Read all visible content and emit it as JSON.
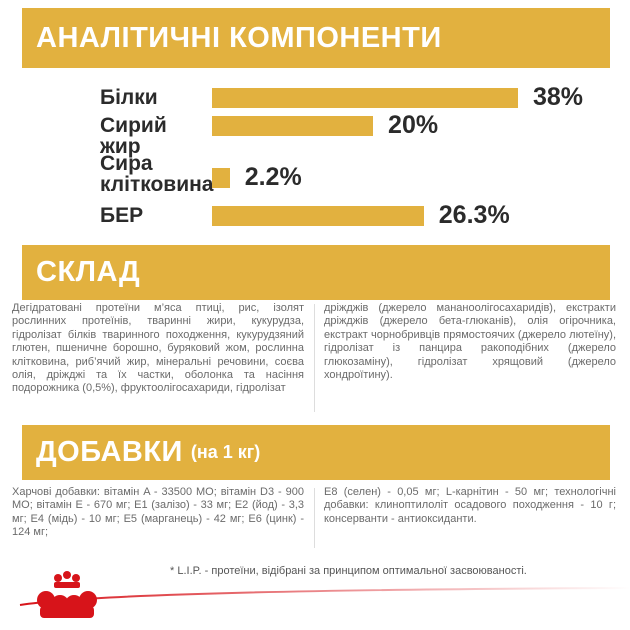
{
  "chart_data": {
    "type": "bar",
    "orientation": "horizontal",
    "title": "АНАЛІТИЧНІ КОМПОНЕНТИ",
    "categories": [
      "Білки",
      "Сирий жир",
      "Сира клітковина",
      "БЕР"
    ],
    "values": [
      38,
      20,
      2.2,
      26.3
    ],
    "value_labels": [
      "38%",
      "20%",
      "2.2%",
      "26.3%"
    ],
    "color": "#e2b13f"
  },
  "composition": {
    "title": "СКЛАД",
    "columns": [
      "Дегідратовані протеїни м’яса птиці, рис, ізолят рослинних протеїнів, тваринні жири, кукурудза, гідролізат білків тваринного походження, кукурудзяний глютен, пшеничне борошно, буряковий жом, рослинна клітковина, риб’ячий жир, мінеральні речовини, соєва олія, дріжджі та їх частки, оболонка та насіння подорожника (0,5%), фруктоолігосахариди, гідролізат",
      "дріжджів (джерело мананоолігосахаридів), екстракти дріжджів (джерело бета-глюканів), олія огірочника, екстракт чорнобривців прямостоячих (джерело лютеїну), гідролізат із панцира ракоподібних (джерело глюкозаміну), гідролізат хрящовий (джерело хондроїтину)."
    ]
  },
  "additives": {
    "title": "ДОБАВКИ",
    "subtitle": "(на 1 кг)",
    "columns": [
      "Харчові добавки: вітамін A - 33500 МО; вітамін D3 - 900 МО; вітамін E - 670 мг; E1 (залізо) - 33 мг; E2 (йод) - 3,3 мг; E4 (мідь) - 10 мг; E5 (марганець) - 42 мг; E6 (цинк) - 124 мг;",
      "E8 (селен) - 0,05 мг; L-карнітин - 50 мг; технологічні добавки: клиноптилоліт осадового походження - 10 г; консерванти - антиоксиданти."
    ]
  },
  "footnote": "* L.I.P. - протеїни, відібрані за принципом оптимальної засвоюваності."
}
